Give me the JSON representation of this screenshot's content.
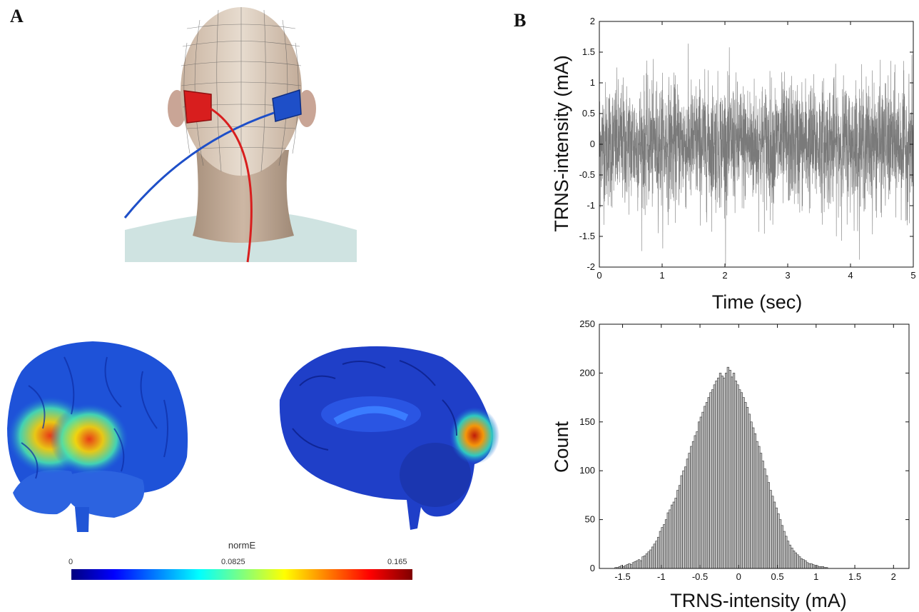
{
  "panels": {
    "a_label": "A",
    "b_label": "B"
  },
  "colorbar": {
    "title": "normE",
    "min_label": "0",
    "mid_label": "0.0825",
    "max_label": "0.165",
    "colors": [
      "#00007f",
      "#0000ff",
      "#007fff",
      "#00ffff",
      "#7fff7f",
      "#ffff00",
      "#ff7f00",
      "#ff0000",
      "#7f0000"
    ]
  },
  "illustration": {
    "anode_color": "#d81e1e",
    "cathode_color": "#1e4fc8"
  },
  "chart_data": [
    {
      "type": "line",
      "xlabel": "Time (sec)",
      "ylabel": "TRNS-intensity (mA)",
      "xlim": [
        0,
        5
      ],
      "ylim": [
        -2,
        2
      ],
      "xticks": [
        "0",
        "1",
        "2",
        "3",
        "4",
        "5"
      ],
      "yticks": [
        "2",
        "1.5",
        "1",
        "0.5",
        "0",
        "-0.5",
        "-1",
        "-1.5",
        "-2"
      ],
      "series_color": "#7a7a7a",
      "noise_std": 0.5,
      "grid": false
    },
    {
      "type": "bar",
      "xlabel": "TRNS-intensity (mA)",
      "ylabel": "Count",
      "xlim": [
        -1.8,
        2.2
      ],
      "ylim": [
        0,
        250
      ],
      "xticks": [
        "-1.5",
        "-1",
        "-0.5",
        "0",
        "0.5",
        "1",
        "1.5",
        "2"
      ],
      "yticks": [
        "250",
        "200",
        "150",
        "100",
        "50",
        "0"
      ],
      "bin_start": -1.6,
      "bin_width": 0.025,
      "values": [
        1,
        1,
        2,
        3,
        2,
        3,
        4,
        5,
        4,
        6,
        7,
        8,
        9,
        8,
        12,
        13,
        15,
        17,
        19,
        22,
        25,
        28,
        32,
        38,
        42,
        45,
        50,
        57,
        60,
        65,
        68,
        72,
        80,
        85,
        95,
        100,
        104,
        112,
        118,
        125,
        130,
        136,
        140,
        150,
        155,
        160,
        166,
        170,
        175,
        180,
        183,
        188,
        192,
        195,
        200,
        197,
        195,
        200,
        206,
        203,
        196,
        200,
        192,
        188,
        183,
        180,
        175,
        170,
        165,
        158,
        150,
        144,
        138,
        130,
        125,
        118,
        110,
        102,
        95,
        88,
        80,
        74,
        68,
        62,
        56,
        50,
        44,
        38,
        33,
        28,
        24,
        21,
        18,
        16,
        14,
        12,
        10,
        9,
        8,
        6,
        5,
        5,
        4,
        3,
        3,
        2,
        2,
        2,
        1,
        1
      ],
      "bar_fill": "#c2c2c2",
      "grid": false
    }
  ]
}
